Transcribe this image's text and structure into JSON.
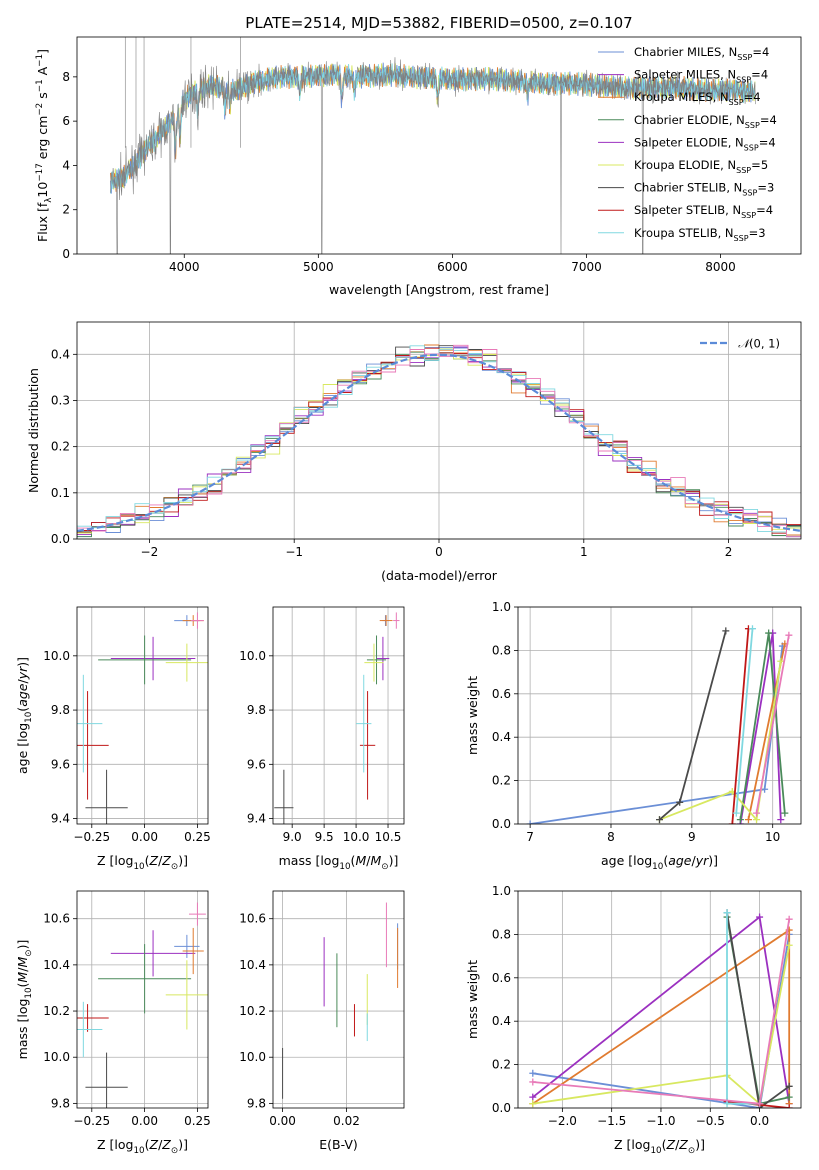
{
  "colors": {
    "chabrier_miles": "#6b8fd6",
    "salpeter_miles": "#9b30c0",
    "kroupa_miles": "#e07b30",
    "chabrier_elodie": "#4a8a5a",
    "salpeter_elodie": "#9b30c0",
    "kroupa_elodie": "#d8e860",
    "chabrier_stelib": "#4a4a4a",
    "salpeter_stelib": "#c01818",
    "kroupa_stelib": "#80d8e0",
    "data": "#808080",
    "pink": "#e87ab8",
    "normal": "#5b8bd8"
  },
  "chart_data": [
    {
      "id": "spectrum",
      "type": "line",
      "title": "PLATE=2514, MJD=53882, FIBERID=0500, z=0.107",
      "xlabel": "wavelength [Angstrom, rest frame]",
      "ylabel": "Flux [fλ10⁻¹⁷ erg cm⁻² s⁻¹ A⁻¹]",
      "xlim": [
        3200,
        8600
      ],
      "ylim": [
        0,
        9.8
      ],
      "xticks": [
        4000,
        5000,
        6000,
        7000,
        8000
      ],
      "yticks": [
        0,
        2,
        4,
        6,
        8
      ],
      "grid": false,
      "legend_position": "top-right",
      "legend": [
        "Chabrier MILES, N_SSP=4",
        "Salpeter MILES, N_SSP=4",
        "Kroupa MILES, N_SSP=4",
        "Chabrier ELODIE, N_SSP=4",
        "Salpeter ELODIE, N_SSP=4",
        "Kroupa ELODIE, N_SSP=5",
        "Chabrier STELIB, N_SSP=3",
        "Salpeter STELIB, N_SSP=4",
        "Kroupa STELIB, N_SSP=3"
      ],
      "continuum": {
        "x": [
          3450,
          3550,
          3650,
          3750,
          3850,
          3950,
          4000,
          4100,
          4200,
          4300,
          4400,
          4500,
          4700,
          4900,
          5100,
          5300,
          5500,
          5700,
          6000,
          6300,
          6500,
          6700,
          6900,
          7100,
          7300,
          7500,
          7700,
          7900,
          8100,
          8250
        ],
        "y": [
          3.2,
          3.5,
          4.2,
          5.0,
          5.6,
          6.4,
          7.0,
          7.4,
          7.6,
          7.5,
          7.4,
          7.7,
          8.0,
          8.0,
          8.1,
          8.0,
          8.1,
          8.0,
          7.9,
          7.9,
          7.8,
          7.7,
          7.7,
          7.6,
          7.5,
          7.5,
          7.5,
          7.4,
          7.4,
          7.3
        ]
      }
    },
    {
      "id": "residuals",
      "type": "bar",
      "xlabel": "(data-model)/error",
      "ylabel": "Normed distribution",
      "xlim": [
        -2.5,
        2.5
      ],
      "ylim": [
        0,
        0.47
      ],
      "xticks": [
        -2,
        -1,
        0,
        1,
        2
      ],
      "yticks": [
        0.0,
        0.1,
        0.2,
        0.3,
        0.4
      ],
      "grid": true,
      "legend_position": "top-right",
      "legend": [
        "𝒩(0, 1)"
      ],
      "bin_width": 0.1
    },
    {
      "id": "age_vs_Z",
      "type": "scatter",
      "xlabel": "Z [log10(Z/Z⊙)]",
      "ylabel": "age  [log10(age/yr)]",
      "xlim": [
        -0.32,
        0.3
      ],
      "ylim": [
        9.38,
        10.18
      ],
      "xticks": [
        -0.25,
        0.0,
        0.25
      ],
      "yticks": [
        9.4,
        9.6,
        9.8,
        10.0
      ],
      "grid": true,
      "points": [
        {
          "series": "Chabrier MILES",
          "x": 0.2,
          "xerr": 0.06,
          "y": 10.13,
          "yerr": 0.02
        },
        {
          "series": "Salpeter MILES",
          "x": 0.04,
          "xerr": 0.2,
          "y": 9.99,
          "yerr": 0.08
        },
        {
          "series": "Kroupa MILES",
          "x": 0.23,
          "xerr": 0.05,
          "y": 10.13,
          "yerr": 0.02
        },
        {
          "series": "Chabrier ELODIE",
          "x": 0.0,
          "xerr": 0.22,
          "y": 9.985,
          "yerr": 0.09
        },
        {
          "series": "Kroupa ELODIE",
          "x": 0.2,
          "xerr": 0.1,
          "y": 9.975,
          "yerr": 0.07
        },
        {
          "series": "Chabrier STELIB",
          "x": -0.18,
          "xerr": 0.1,
          "y": 9.44,
          "yerr": 0.14
        },
        {
          "series": "Salpeter STELIB",
          "x": -0.27,
          "xerr": 0.1,
          "y": 9.67,
          "yerr": 0.2
        },
        {
          "series": "Kroupa STELIB",
          "x": -0.29,
          "xerr": 0.09,
          "y": 9.75,
          "yerr": 0.18
        },
        {
          "series": "Kroupa (pink)",
          "x": 0.25,
          "xerr": 0.03,
          "y": 10.13,
          "yerr": 0.03
        }
      ]
    },
    {
      "id": "age_vs_mass",
      "type": "scatter",
      "xlabel": "mass [log10(M/M⊙)]",
      "ylabel": "",
      "xlim": [
        8.7,
        10.75
      ],
      "ylim": [
        9.38,
        10.18
      ],
      "xticks": [
        9.0,
        9.5,
        10.0,
        10.5
      ],
      "yticks": [
        9.4,
        9.6,
        9.8,
        10.0
      ],
      "grid": true,
      "points": [
        {
          "series": "Chabrier MILES",
          "x": 10.46,
          "xerr": 0.05,
          "y": 10.13,
          "yerr": 0.02
        },
        {
          "series": "Salpeter MILES",
          "x": 10.42,
          "xerr": 0.1,
          "y": 9.99,
          "yerr": 0.08
        },
        {
          "series": "Kroupa MILES",
          "x": 10.47,
          "xerr": 0.1,
          "y": 10.13,
          "yerr": 0.02
        },
        {
          "series": "Chabrier ELODIE",
          "x": 10.32,
          "xerr": 0.15,
          "y": 9.985,
          "yerr": 0.09
        },
        {
          "series": "Kroupa ELODIE",
          "x": 10.28,
          "xerr": 0.15,
          "y": 9.975,
          "yerr": 0.07
        },
        {
          "series": "Chabrier STELIB",
          "x": 8.87,
          "xerr": 0.15,
          "y": 9.44,
          "yerr": 0.14
        },
        {
          "series": "Salpeter STELIB",
          "x": 10.18,
          "xerr": 0.12,
          "y": 9.67,
          "yerr": 0.2
        },
        {
          "series": "Kroupa STELIB",
          "x": 10.12,
          "xerr": 0.12,
          "y": 9.75,
          "yerr": 0.18
        },
        {
          "series": "Kroupa (pink)",
          "x": 10.63,
          "xerr": 0.05,
          "y": 10.13,
          "yerr": 0.03
        }
      ]
    },
    {
      "id": "massweight_vs_age",
      "type": "line",
      "xlabel": "age  [log10(age/yr)]",
      "ylabel": "mass weight",
      "xlim": [
        6.85,
        10.35
      ],
      "ylim": [
        0,
        1
      ],
      "xticks": [
        7,
        8,
        9,
        10
      ],
      "yticks": [
        0.0,
        0.2,
        0.4,
        0.6,
        0.8,
        1.0
      ],
      "grid": true,
      "series": [
        {
          "key": "chabrier_miles",
          "x": [
            7.0,
            9.9,
            10.12
          ],
          "y": [
            0.0,
            0.16,
            0.82
          ]
        },
        {
          "key": "salpeter_miles",
          "x": [
            9.6,
            10.0,
            10.1
          ],
          "y": [
            0.0,
            0.88,
            0.02
          ]
        },
        {
          "key": "kroupa_miles",
          "x": [
            9.7,
            10.15
          ],
          "y": [
            0.02,
            0.83
          ]
        },
        {
          "key": "chabrier_elodie",
          "x": [
            9.6,
            9.95,
            10.15
          ],
          "y": [
            0.02,
            0.88,
            0.05
          ]
        },
        {
          "key": "kroupa_elodie",
          "x": [
            8.6,
            9.5,
            9.8,
            10.1
          ],
          "y": [
            0.02,
            0.15,
            0.02,
            0.75
          ]
        },
        {
          "key": "chabrier_stelib",
          "x": [
            8.6,
            8.85,
            9.42
          ],
          "y": [
            0.02,
            0.1,
            0.89
          ]
        },
        {
          "key": "salpeter_stelib",
          "x": [
            9.5,
            9.7
          ],
          "y": [
            0.0,
            0.9
          ]
        },
        {
          "key": "kroupa_stelib",
          "x": [
            9.55,
            9.75
          ],
          "y": [
            0.05,
            0.9
          ]
        },
        {
          "key": "pink",
          "x": [
            9.8,
            10.2
          ],
          "y": [
            0.05,
            0.87
          ]
        }
      ]
    },
    {
      "id": "mass_vs_Z",
      "type": "scatter",
      "xlabel": "Z [log10(Z/Z⊙)]",
      "ylabel": "mass [log10(M/M⊙)]",
      "xlim": [
        -0.32,
        0.3
      ],
      "ylim": [
        9.78,
        10.72
      ],
      "xticks": [
        -0.25,
        0.0,
        0.25
      ],
      "yticks": [
        9.8,
        10.0,
        10.2,
        10.4,
        10.6
      ],
      "grid": true,
      "points": [
        {
          "series": "Chabrier MILES",
          "x": 0.2,
          "xerr": 0.06,
          "y": 10.48,
          "yerr": 0.05
        },
        {
          "series": "Salpeter MILES",
          "x": 0.04,
          "xerr": 0.2,
          "y": 10.45,
          "yerr": 0.1
        },
        {
          "series": "Kroupa MILES",
          "x": 0.23,
          "xerr": 0.05,
          "y": 10.46,
          "yerr": 0.1
        },
        {
          "series": "Chabrier ELODIE",
          "x": 0.0,
          "xerr": 0.22,
          "y": 10.34,
          "yerr": 0.15
        },
        {
          "series": "Kroupa ELODIE",
          "x": 0.2,
          "xerr": 0.1,
          "y": 10.27,
          "yerr": 0.15
        },
        {
          "series": "Chabrier STELIB",
          "x": -0.18,
          "xerr": 0.1,
          "y": 9.87,
          "yerr": 0.15
        },
        {
          "series": "Salpeter STELIB",
          "x": -0.27,
          "xerr": 0.1,
          "y": 10.17,
          "yerr": 0.06
        },
        {
          "series": "Kroupa STELIB",
          "x": -0.29,
          "xerr": 0.09,
          "y": 10.12,
          "yerr": 0.12
        },
        {
          "series": "Kroupa (pink)",
          "x": 0.25,
          "xerr": 0.04,
          "y": 10.62,
          "yerr": 0.05
        }
      ]
    },
    {
      "id": "mass_vs_ebv",
      "type": "scatter",
      "xlabel": "E(B-V)",
      "ylabel": "",
      "xlim": [
        -0.003,
        0.038
      ],
      "ylim": [
        9.78,
        10.72
      ],
      "xticks": [
        0.0,
        0.02
      ],
      "yticks": [
        9.8,
        10.0,
        10.2,
        10.4,
        10.6
      ],
      "grid": true,
      "points": [
        {
          "series": "Chabrier MILES",
          "x": 0.036,
          "y": 10.48,
          "yerr": 0.1
        },
        {
          "series": "Salpeter MILES",
          "x": 0.013,
          "y": 10.37,
          "yerr": 0.15
        },
        {
          "series": "Kroupa MILES",
          "x": 0.036,
          "y": 10.43,
          "yerr": 0.13
        },
        {
          "series": "Chabrier ELODIE",
          "x": 0.017,
          "y": 10.29,
          "yerr": 0.16
        },
        {
          "series": "Kroupa ELODIE",
          "x": 0.0265,
          "y": 10.25,
          "yerr": 0.11
        },
        {
          "series": "Chabrier STELIB",
          "x": 0.0,
          "y": 9.93,
          "yerr": 0.11
        },
        {
          "series": "Salpeter STELIB",
          "x": 0.0225,
          "y": 10.16,
          "yerr": 0.07
        },
        {
          "series": "Kroupa STELIB",
          "x": 0.0265,
          "y": 10.13,
          "yerr": 0.06
        },
        {
          "series": "Kroupa (pink)",
          "x": 0.0325,
          "y": 10.53,
          "yerr": 0.14
        }
      ]
    },
    {
      "id": "massweight_vs_Z",
      "type": "line",
      "xlabel": "Z [log10(Z/Z⊙)]",
      "ylabel": "mass weight",
      "xlim": [
        -2.45,
        0.42
      ],
      "ylim": [
        0,
        1
      ],
      "xticks": [
        -2.0,
        -1.5,
        -1.0,
        -0.5,
        0.0
      ],
      "yticks": [
        0.0,
        0.2,
        0.4,
        0.6,
        0.8,
        1.0
      ],
      "grid": true,
      "series": [
        {
          "key": "chabrier_miles",
          "x": [
            -2.3,
            0.0,
            0.3
          ],
          "y": [
            0.16,
            0.0,
            0.8
          ]
        },
        {
          "key": "salpeter_miles",
          "x": [
            -2.3,
            0.0,
            0.3
          ],
          "y": [
            0.05,
            0.88,
            0.02
          ]
        },
        {
          "key": "kroupa_miles",
          "x": [
            -2.3,
            0.3,
            0.3
          ],
          "y": [
            0.02,
            0.82,
            0.02
          ]
        },
        {
          "key": "chabrier_elodie",
          "x": [
            -0.33,
            0.0,
            0.3
          ],
          "y": [
            0.88,
            0.02,
            0.05
          ]
        },
        {
          "key": "kroupa_elodie",
          "x": [
            -2.3,
            -0.33,
            0.0,
            0.3
          ],
          "y": [
            0.02,
            0.15,
            0.02,
            0.75
          ]
        },
        {
          "key": "chabrier_stelib",
          "x": [
            -0.33,
            0.0,
            0.3
          ],
          "y": [
            0.9,
            0.0,
            0.1
          ]
        },
        {
          "key": "salpeter_stelib",
          "x": [
            -0.33,
            0.3
          ],
          "y": [
            0.03,
            0.0
          ]
        },
        {
          "key": "kroupa_stelib",
          "x": [
            -0.33,
            -0.33,
            0.0
          ],
          "y": [
            0.9,
            0.02,
            0.02
          ]
        },
        {
          "key": "pink",
          "x": [
            -2.3,
            0.0,
            0.3
          ],
          "y": [
            0.12,
            0.02,
            0.87
          ]
        }
      ]
    }
  ]
}
